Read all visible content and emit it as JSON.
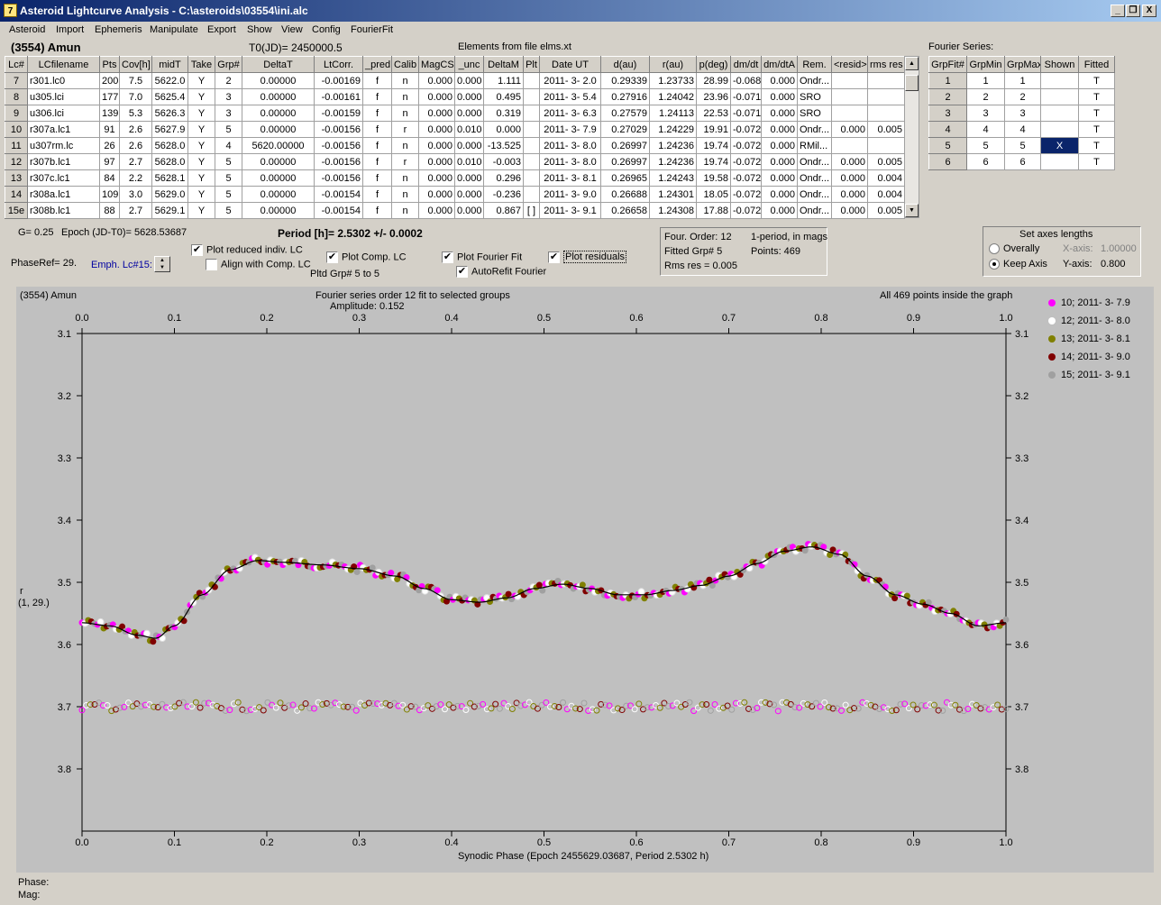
{
  "window": {
    "title": "Asteroid Lightcurve Analysis - C:\\asteroids\\03554\\ini.alc",
    "minimize": "_",
    "restore": "❐",
    "close": "X"
  },
  "menu": [
    "Asteroid",
    "Import",
    "Ephemeris",
    "Manipulate",
    "Export",
    "Show",
    "View",
    "Config",
    "FourierFit"
  ],
  "header": {
    "asteroid": "(3554) Amun",
    "t0": "T0(JD)= 2450000.5",
    "elements": "Elements from file elms.xt",
    "fourier_label": "Fourier Series:"
  },
  "lc_table": {
    "columns": [
      "Lc#",
      "LCfilename",
      "Pts",
      "Cov[h]",
      "midT",
      "Take",
      "Grp#",
      "DeltaT",
      "LtCorr.",
      "_pred",
      "Calib",
      "MagCS",
      "_unc",
      "DeltaM",
      "Plt",
      "Date UT",
      "d(au)",
      "r(au)",
      "p(deg)",
      "dm/dt",
      "dm/dtA",
      "Rem.",
      "<resid>",
      "rms res"
    ],
    "rows": [
      [
        "7",
        "r301.lc0",
        "200",
        "7.5",
        "5622.0",
        "Y",
        "2",
        "0.00000",
        "-0.00169",
        "f",
        "n",
        "0.000",
        "0.000",
        "1.111",
        "",
        "2011- 3- 2.0",
        "0.29339",
        "1.23733",
        "28.99",
        "-0.068",
        "0.000",
        "Ondr...",
        "",
        ""
      ],
      [
        "8",
        "u305.lci",
        "177",
        "7.0",
        "5625.4",
        "Y",
        "3",
        "0.00000",
        "-0.00161",
        "f",
        "n",
        "0.000",
        "0.000",
        "0.495",
        "",
        "2011- 3- 5.4",
        "0.27916",
        "1.24042",
        "23.96",
        "-0.071",
        "0.000",
        "SRO",
        "",
        ""
      ],
      [
        "9",
        "u306.lci",
        "139",
        "5.3",
        "5626.3",
        "Y",
        "3",
        "0.00000",
        "-0.00159",
        "f",
        "n",
        "0.000",
        "0.000",
        "0.319",
        "",
        "2011- 3- 6.3",
        "0.27579",
        "1.24113",
        "22.53",
        "-0.071",
        "0.000",
        "SRO",
        "",
        ""
      ],
      [
        "10",
        "r307a.lc1",
        "91",
        "2.6",
        "5627.9",
        "Y",
        "5",
        "0.00000",
        "-0.00156",
        "f",
        "r",
        "0.000",
        "0.010",
        "0.000",
        "",
        "2011- 3- 7.9",
        "0.27029",
        "1.24229",
        "19.91",
        "-0.072",
        "0.000",
        "Ondr...",
        "0.000",
        "0.005"
      ],
      [
        "11",
        "u307rm.lc",
        "26",
        "2.6",
        "5628.0",
        "Y",
        "4",
        "5620.00000",
        "-0.00156",
        "f",
        "n",
        "0.000",
        "0.000",
        "-13.525",
        "",
        "2011- 3- 8.0",
        "0.26997",
        "1.24236",
        "19.74",
        "-0.072",
        "0.000",
        "RMil...",
        "",
        ""
      ],
      [
        "12",
        "r307b.lc1",
        "97",
        "2.7",
        "5628.0",
        "Y",
        "5",
        "0.00000",
        "-0.00156",
        "f",
        "r",
        "0.000",
        "0.010",
        "-0.003",
        "",
        "2011- 3- 8.0",
        "0.26997",
        "1.24236",
        "19.74",
        "-0.072",
        "0.000",
        "Ondr...",
        "0.000",
        "0.005"
      ],
      [
        "13",
        "r307c.lc1",
        "84",
        "2.2",
        "5628.1",
        "Y",
        "5",
        "0.00000",
        "-0.00156",
        "f",
        "n",
        "0.000",
        "0.000",
        "0.296",
        "",
        "2011- 3- 8.1",
        "0.26965",
        "1.24243",
        "19.58",
        "-0.072",
        "0.000",
        "Ondr...",
        "0.000",
        "0.004"
      ],
      [
        "14",
        "r308a.lc1",
        "109",
        "3.0",
        "5629.0",
        "Y",
        "5",
        "0.00000",
        "-0.00154",
        "f",
        "n",
        "0.000",
        "0.000",
        "-0.236",
        "",
        "2011- 3- 9.0",
        "0.26688",
        "1.24301",
        "18.05",
        "-0.072",
        "0.000",
        "Ondr...",
        "0.000",
        "0.004"
      ],
      [
        "15e",
        "r308b.lc1",
        "88",
        "2.7",
        "5629.1",
        "Y",
        "5",
        "0.00000",
        "-0.00154",
        "f",
        "n",
        "0.000",
        "0.000",
        "0.867",
        "[ ]",
        "2011- 3- 9.1",
        "0.26658",
        "1.24308",
        "17.88",
        "-0.072",
        "0.000",
        "Ondr...",
        "0.000",
        "0.005"
      ]
    ]
  },
  "fourier_table": {
    "columns": [
      "GrpFit#",
      "GrpMin",
      "GrpMax",
      "Shown",
      "Fitted"
    ],
    "rows": [
      [
        "1",
        "1",
        "1",
        "",
        "T"
      ],
      [
        "2",
        "2",
        "2",
        "",
        "T"
      ],
      [
        "3",
        "3",
        "3",
        "",
        "T"
      ],
      [
        "4",
        "4",
        "4",
        "",
        "T"
      ],
      [
        "5",
        "5",
        "5",
        "X",
        "T"
      ],
      [
        "6",
        "6",
        "6",
        "",
        "T"
      ]
    ]
  },
  "controls": {
    "g": "G= 0.25",
    "epoch": "Epoch (JD-T0)= 5628.53687",
    "period": "Period [h]= 2.5302 +/- 0.0002",
    "phaseref": "PhaseRef= 29.",
    "emph": "Emph. Lc#15:",
    "plot_reduced": "Plot reduced indiv. LC",
    "align_comp": "Align with Comp. LC",
    "plot_comp": "Plot Comp. LC",
    "plotted_grp": "Pltd Grp#  5   to   5",
    "plot_fourier": "Plot Fourier Fit",
    "autorefit": "AutoRefit Fourier",
    "plot_residuals": "Plot residuals",
    "check": "✔"
  },
  "fit_info": {
    "order": "Four. Order: 12",
    "period_mode": "1-period, in mags",
    "fitted": "Fitted Grp# 5",
    "points": "Points: 469",
    "rms": "Rms res     = 0.005"
  },
  "axes_box": {
    "title": "Set axes lengths",
    "overall": "Overally",
    "keep": "Keep Axis",
    "xaxis_label": "X-axis:",
    "xaxis_value": "1.00000",
    "yaxis_label": "Y-axis:",
    "yaxis_value": "0.800"
  },
  "chart_data": {
    "type": "scatter",
    "title": "(3554) Amun",
    "subtitle": "Fourier series order 12 fit to selected groups",
    "amplitude": "Amplitude: 0.152",
    "note": "All 469 points inside the graph",
    "xlabel": "Synodic Phase (Epoch 2455629.03687, Period 2.5302 h)",
    "ylabel": "r",
    "ylabel2": "(1, 29.)",
    "xlim": [
      0.0,
      1.0
    ],
    "ylim": [
      3.1,
      3.9
    ],
    "y_inverted": true,
    "xticks": [
      "0.0",
      "0.1",
      "0.2",
      "0.3",
      "0.4",
      "0.5",
      "0.6",
      "0.7",
      "0.8",
      "0.9",
      "1.0"
    ],
    "yticks": [
      "3.1",
      "3.2",
      "3.3",
      "3.4",
      "3.5",
      "3.6",
      "3.7",
      "3.8"
    ],
    "fit_curve": {
      "x": [
        0.0,
        0.03,
        0.06,
        0.08,
        0.1,
        0.13,
        0.16,
        0.19,
        0.22,
        0.26,
        0.3,
        0.34,
        0.37,
        0.4,
        0.43,
        0.46,
        0.49,
        0.52,
        0.55,
        0.58,
        0.61,
        0.64,
        0.67,
        0.7,
        0.73,
        0.76,
        0.79,
        0.82,
        0.85,
        0.88,
        0.91,
        0.94,
        0.97,
        1.0
      ],
      "y": [
        3.565,
        3.57,
        3.585,
        3.59,
        3.57,
        3.52,
        3.48,
        3.465,
        3.468,
        3.472,
        3.478,
        3.49,
        3.51,
        3.528,
        3.532,
        3.525,
        3.51,
        3.503,
        3.51,
        3.52,
        3.52,
        3.513,
        3.505,
        3.49,
        3.47,
        3.45,
        3.443,
        3.455,
        3.49,
        3.52,
        3.535,
        3.55,
        3.57,
        3.565
      ]
    },
    "residual_level": 3.7,
    "series": [
      {
        "name": "10; 2011- 3- 7.9",
        "color": "#ff00ff"
      },
      {
        "name": "12; 2011- 3- 8.0",
        "color": "#ffffff"
      },
      {
        "name": "13; 2011- 3- 8.1",
        "color": "#808000"
      },
      {
        "name": "14; 2011- 3- 9.0",
        "color": "#800000"
      },
      {
        "name": "15; 2011- 3- 9.1",
        "color": "#a0a0a0"
      }
    ]
  },
  "status": {
    "phase": "Phase:",
    "mag": "Mag:"
  }
}
